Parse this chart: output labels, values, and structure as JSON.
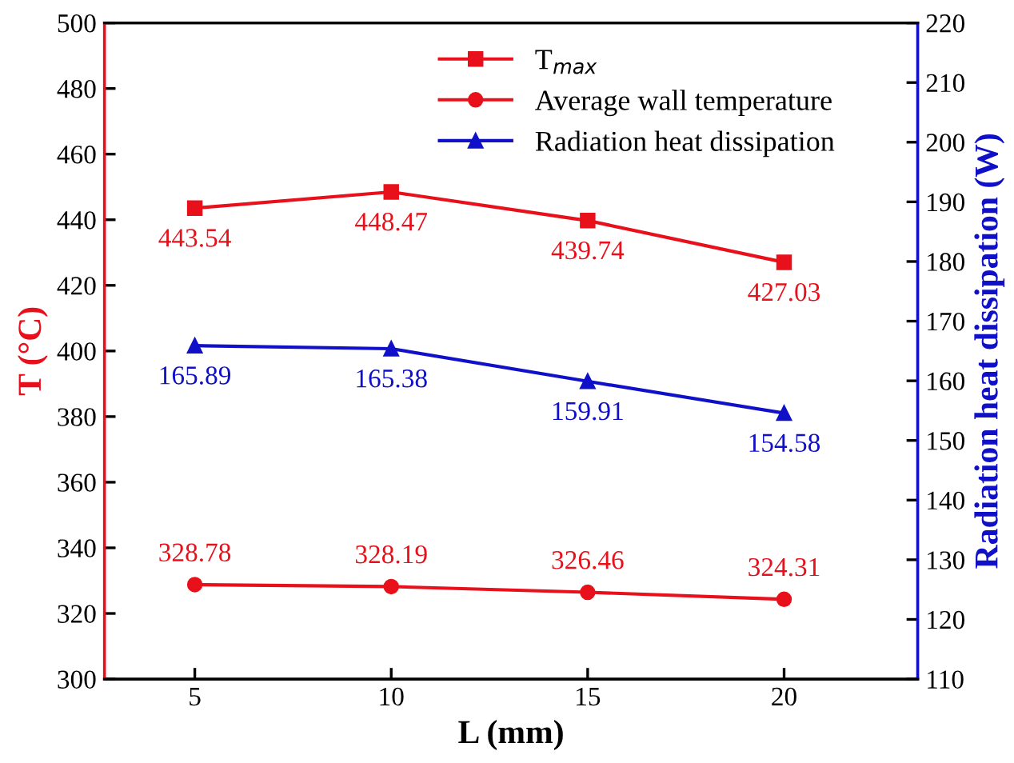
{
  "chart_data": {
    "type": "line",
    "x": [
      5,
      10,
      15,
      20
    ],
    "xlabel": "L (mm)",
    "ylabel": "T (°C)",
    "y2label": "Radiation heat dissipation (W)",
    "series": [
      {
        "name": "T$_{max}$",
        "color": "#e8101a",
        "values": [
          443.54,
          448.47,
          439.74,
          427.03
        ],
        "marker": "square"
      },
      {
        "name": "Average wall temperature",
        "color": "#e8101a",
        "values": [
          328.78,
          328.19,
          326.46,
          324.31
        ],
        "marker": "circle"
      },
      {
        "name": "Radiation heat dissipation",
        "color": "#1010c8",
        "values": [
          165.89,
          165.38,
          159.91,
          154.58
        ],
        "marker": "triangle",
        "axis": "y2"
      }
    ],
    "xlim": [
      2.7,
      23.4
    ],
    "xticks": [
      5,
      10,
      15,
      20
    ],
    "ylim": [
      300,
      500
    ],
    "yticks": [
      300,
      320,
      340,
      360,
      380,
      400,
      420,
      440,
      460,
      480,
      500
    ],
    "y2lim": [
      110,
      220
    ],
    "y2ticks": [
      110,
      120,
      130,
      140,
      150,
      160,
      170,
      180,
      190,
      200,
      210,
      220
    ],
    "data_labels": true,
    "legend": "top right",
    "grid": false,
    "line_style": "solid"
  }
}
